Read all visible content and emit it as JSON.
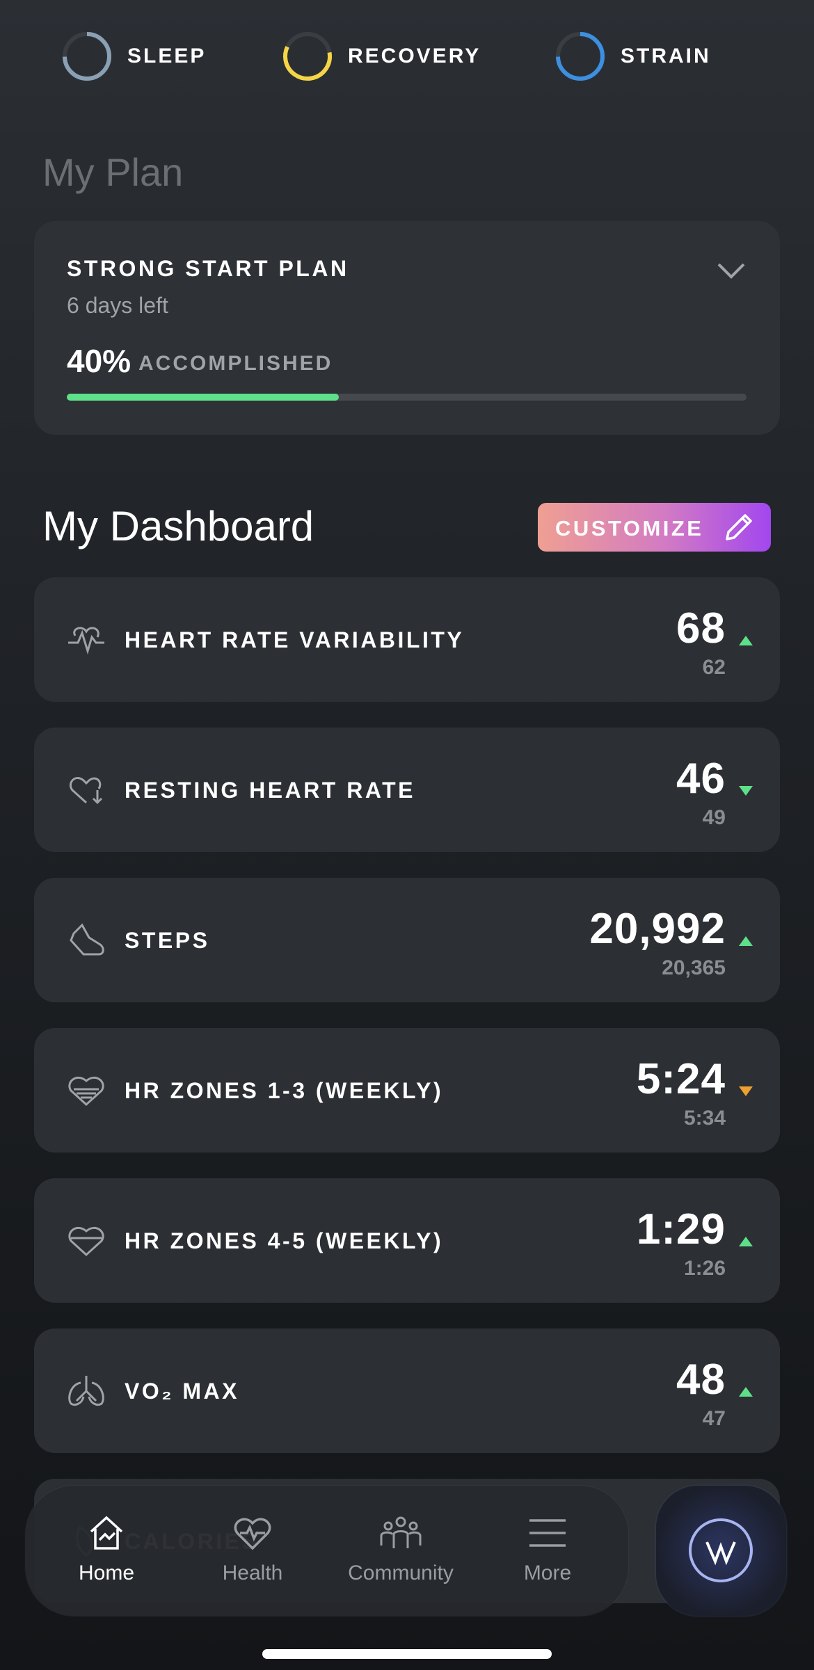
{
  "status_bar": [
    {
      "label": "SLEEP",
      "color": "#8aa0b4"
    },
    {
      "label": "RECOVERY",
      "color": "#f5d547"
    },
    {
      "label": "STRAIN",
      "color": "#3d8fe0"
    }
  ],
  "plan": {
    "heading": "My Plan",
    "title": "STRONG START PLAN",
    "subtitle": "6 days left",
    "progress": {
      "value": 40,
      "label": "40%"
    },
    "progress_text": "ACCOMPLISHED",
    "color": "#5ee08a"
  },
  "dashboard": {
    "heading": "My Dashboard",
    "button": "CUSTOMIZE",
    "metrics": [
      {
        "name": "HEART RATE VARIABILITY",
        "value": "68",
        "previous": "62",
        "trend": "up",
        "trend_color": "#5ee08a"
      },
      {
        "name": "RESTING HEART RATE",
        "value": "46",
        "previous": "49",
        "trend": "down",
        "trend_color": "#5ee08a"
      },
      {
        "name": "STEPS",
        "value": "20,992",
        "previous": "20,365",
        "trend": "up",
        "trend_color": "#5ee08a"
      },
      {
        "name": "HR ZONES 1-3 (WEEKLY)",
        "value": "5:24",
        "previous": "5:34",
        "trend": "down",
        "trend_color": "#f0a030"
      },
      {
        "name": "HR ZONES 4-5 (WEEKLY)",
        "value": "1:29",
        "previous": "1:26",
        "trend": "up",
        "trend_color": "#5ee08a"
      },
      {
        "name": "VO₂ MAX",
        "value": "48",
        "previous": "47",
        "trend": "up",
        "trend_color": "#5ee08a"
      },
      {
        "name": "CALORIES"
      }
    ]
  },
  "nav": {
    "items": [
      {
        "label": "Home",
        "active": true
      },
      {
        "label": "Health",
        "active": false
      },
      {
        "label": "Community",
        "active": false
      },
      {
        "label": "More",
        "active": false
      }
    ]
  }
}
